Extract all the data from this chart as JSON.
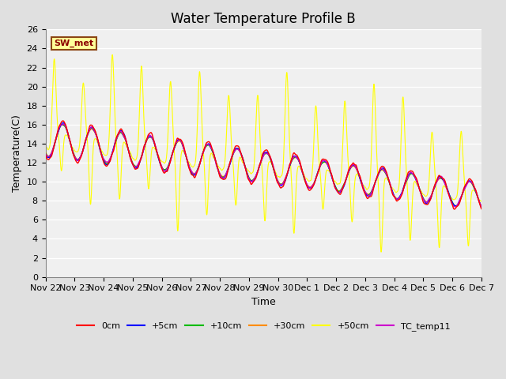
{
  "title": "Water Temperature Profile B",
  "xlabel": "Time",
  "ylabel": "Temperature(C)",
  "ylim": [
    0,
    26
  ],
  "yticks": [
    0,
    2,
    4,
    6,
    8,
    10,
    12,
    14,
    16,
    18,
    20,
    22,
    24,
    26
  ],
  "n_days": 15,
  "annotation_text": "SW_met",
  "annotation_color": "#8B0000",
  "annotation_bg": "#FFFF99",
  "annotation_border": "#8B4513",
  "series_colors": {
    "0cm": "#FF0000",
    "+5cm": "#0000FF",
    "+10cm": "#00BB00",
    "+30cm": "#FF8C00",
    "+50cm": "#FFFF00",
    "TC_temp11": "#CC00CC"
  },
  "bg_color": "#E0E0E0",
  "plot_bg": "#F0F0F0",
  "grid_color": "#FFFFFF",
  "tick_labels": [
    "Nov 22",
    "Nov 23",
    "Nov 24",
    "Nov 25",
    "Nov 26",
    "Nov 27",
    "Nov 28",
    "Nov 29",
    "Nov 30",
    "Dec 1",
    "Dec 2",
    "Dec 3",
    "Dec 4",
    "Dec 5",
    "Dec 6",
    "Dec 7"
  ],
  "fontsize_title": 12,
  "fontsize_axis": 9,
  "fontsize_tick": 8
}
